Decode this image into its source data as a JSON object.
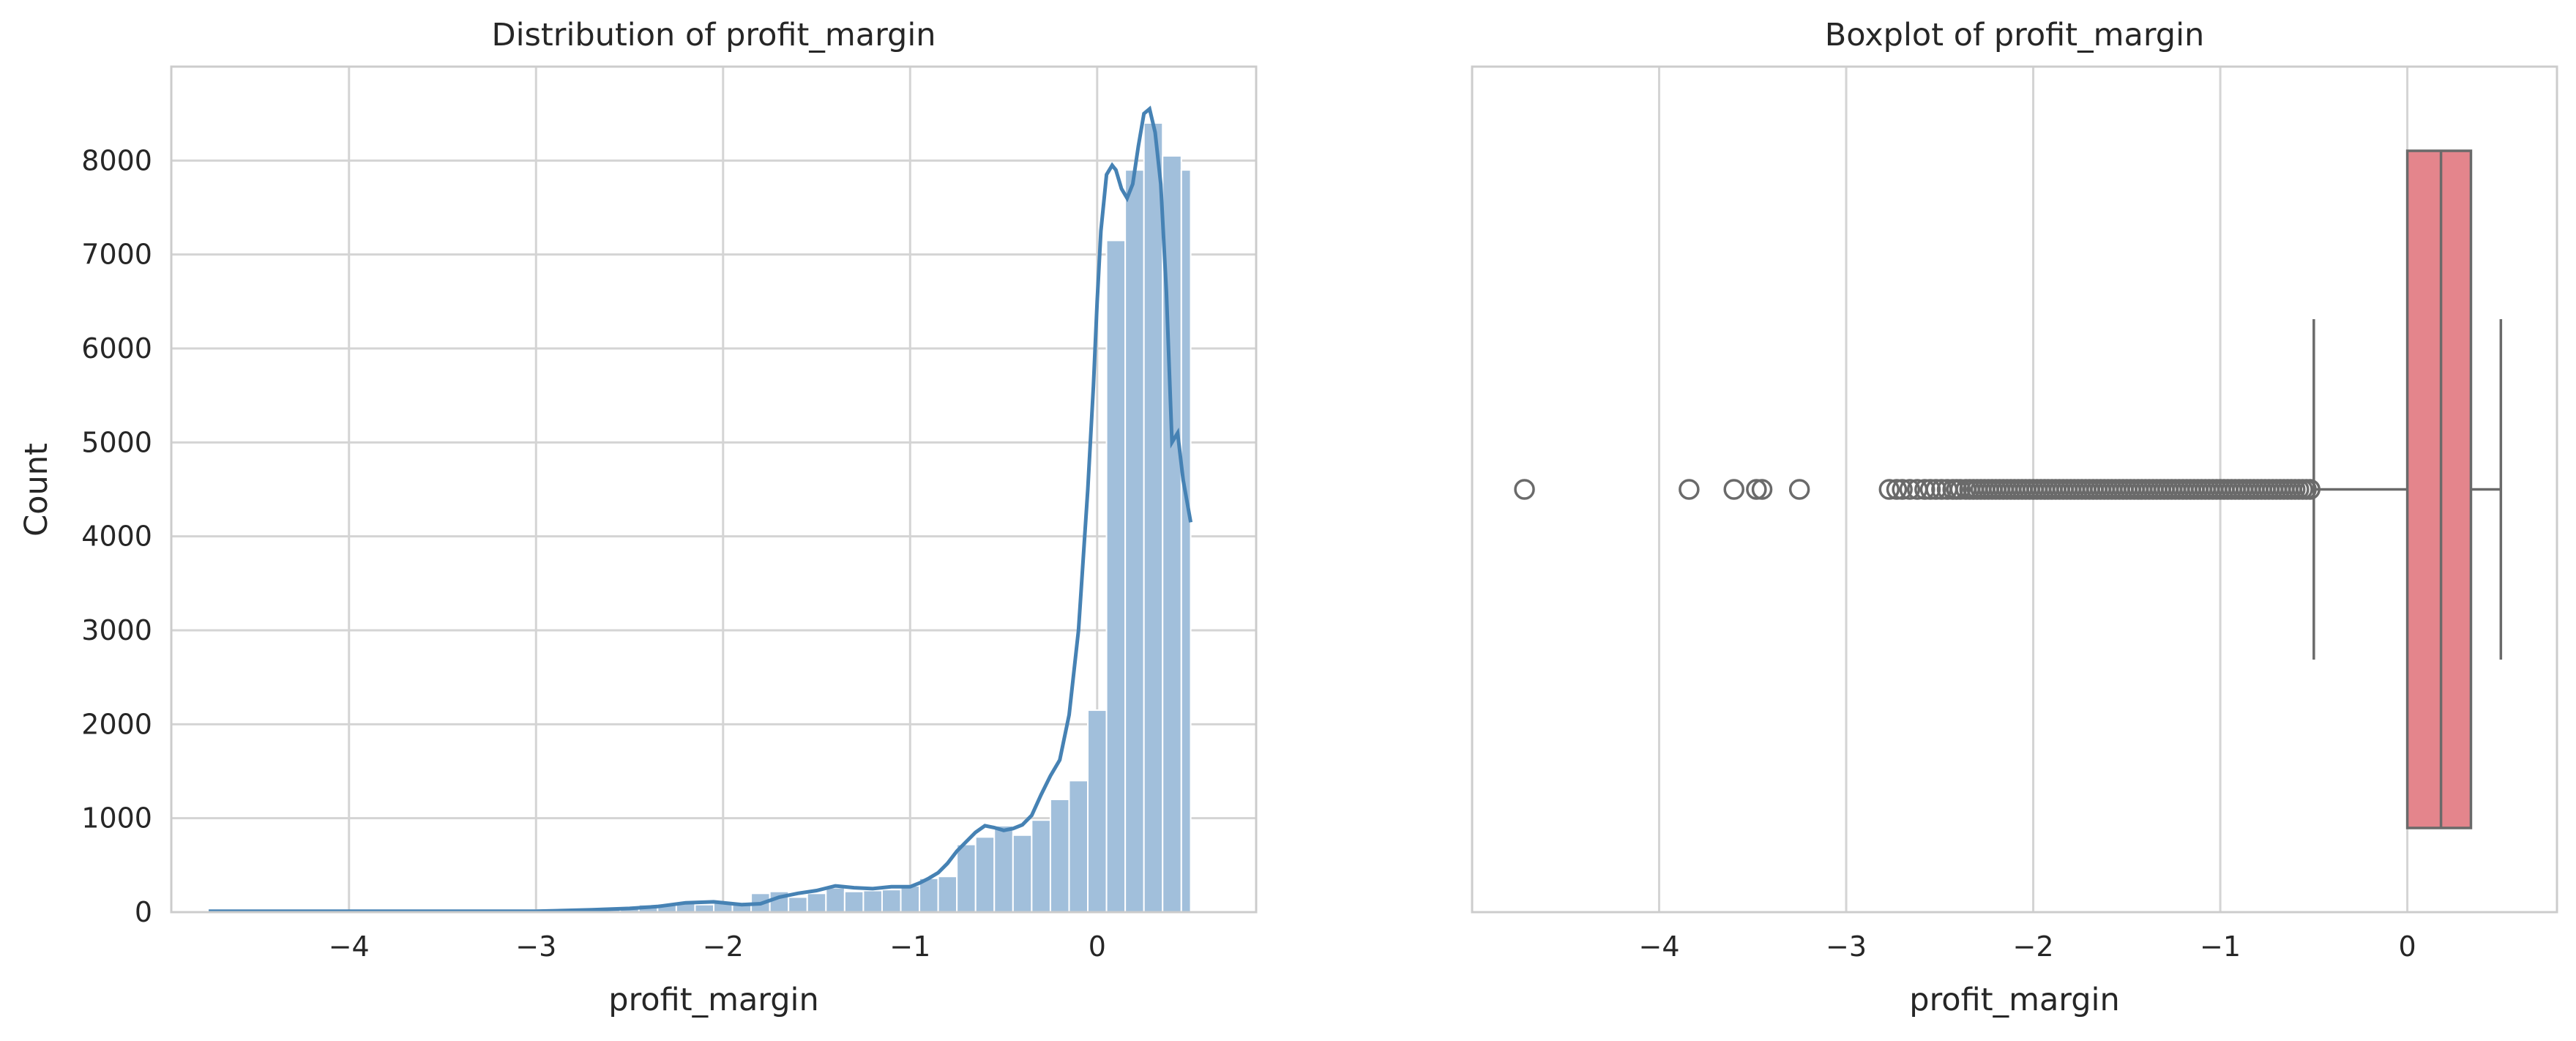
{
  "colors": {
    "hist_fill": "#a1bfdb",
    "hist_stroke": "#ffffff",
    "kde_line": "#4682b4",
    "box_fill": "#e4858c",
    "box_line": "#6a6a6a",
    "grid": "#d4d4d4",
    "frame": "#cccccc",
    "flier_edge": "#6a6a6a"
  },
  "chart_data": [
    {
      "type": "bar",
      "title": "Distribution of profit_margin",
      "xlabel": "profit_margin",
      "ylabel": "Count",
      "xlim": [
        -4.95,
        0.85
      ],
      "ylim": [
        0,
        9000
      ],
      "xticks": [
        -4,
        -3,
        -2,
        -1,
        0
      ],
      "xtick_labels": [
        "−4",
        "−3",
        "−2",
        "−1",
        "0"
      ],
      "yticks": [
        0,
        1000,
        2000,
        3000,
        4000,
        5000,
        6000,
        7000,
        8000
      ],
      "ytick_labels": [
        "0",
        "1000",
        "2000",
        "3000",
        "4000",
        "5000",
        "6000",
        "7000",
        "8000"
      ],
      "grid": true,
      "bin_edges": [
        -4.75,
        -4.65,
        -4.55,
        -4.45,
        -4.35,
        -4.25,
        -4.15,
        -4.05,
        -3.95,
        -3.85,
        -3.75,
        -3.65,
        -3.55,
        -3.45,
        -3.35,
        -3.25,
        -3.15,
        -3.05,
        -2.95,
        -2.85,
        -2.75,
        -2.65,
        -2.55,
        -2.45,
        -2.35,
        -2.25,
        -2.15,
        -2.05,
        -1.95,
        -1.85,
        -1.75,
        -1.65,
        -1.55,
        -1.45,
        -1.35,
        -1.25,
        -1.15,
        -1.05,
        -0.95,
        -0.85,
        -0.75,
        -0.65,
        -0.55,
        -0.45,
        -0.35,
        -0.25,
        -0.15,
        -0.05,
        0.05,
        0.15,
        0.25,
        0.35,
        0.45,
        0.5
      ],
      "counts": [
        10,
        3,
        5,
        4,
        6,
        4,
        6,
        8,
        6,
        12,
        8,
        10,
        14,
        10,
        14,
        16,
        20,
        22,
        28,
        30,
        40,
        55,
        62,
        80,
        90,
        110,
        80,
        100,
        90,
        200,
        220,
        160,
        200,
        260,
        220,
        230,
        240,
        280,
        360,
        380,
        720,
        800,
        920,
        820,
        980,
        1200,
        1400,
        2150,
        7150,
        7900,
        8400,
        8050,
        7900
      ],
      "series": [
        {
          "name": "kde",
          "type": "line",
          "x": [
            -4.75,
            -4.0,
            -3.0,
            -2.7,
            -2.5,
            -2.35,
            -2.2,
            -2.05,
            -1.9,
            -1.8,
            -1.7,
            -1.6,
            -1.5,
            -1.4,
            -1.3,
            -1.2,
            -1.1,
            -1.0,
            -0.95,
            -0.9,
            -0.85,
            -0.8,
            -0.75,
            -0.7,
            -0.65,
            -0.6,
            -0.55,
            -0.5,
            -0.45,
            -0.4,
            -0.35,
            -0.3,
            -0.25,
            -0.2,
            -0.15,
            -0.1,
            -0.05,
            -0.02,
            0.0,
            0.02,
            0.05,
            0.08,
            0.1,
            0.13,
            0.16,
            0.19,
            0.22,
            0.25,
            0.28,
            0.31,
            0.34,
            0.37,
            0.4,
            0.43,
            0.46,
            0.5
          ],
          "y": [
            10,
            10,
            10,
            25,
            40,
            60,
            100,
            110,
            80,
            90,
            160,
            200,
            230,
            280,
            260,
            250,
            270,
            270,
            310,
            360,
            420,
            520,
            650,
            750,
            850,
            920,
            900,
            870,
            890,
            930,
            1030,
            1250,
            1450,
            1620,
            2100,
            3000,
            4500,
            5600,
            6500,
            7250,
            7850,
            7950,
            7900,
            7700,
            7600,
            7750,
            8150,
            8500,
            8550,
            8300,
            7750,
            6600,
            5000,
            5100,
            4600,
            4150
          ]
        }
      ]
    },
    {
      "type": "box",
      "title": "Boxplot of profit_margin",
      "xlabel": "profit_margin",
      "xlim": [
        -5.0,
        0.8
      ],
      "xticks": [
        -4,
        -3,
        -2,
        -1,
        0
      ],
      "xtick_labels": [
        "−4",
        "−3",
        "−2",
        "−1",
        "0"
      ],
      "grid": true,
      "whisker_low": -0.5,
      "q1": 0.0,
      "median": 0.18,
      "q3": 0.34,
      "whisker_high": 0.5,
      "outliers": [
        -4.72,
        -3.84,
        -3.6,
        -3.48,
        -3.45,
        -3.25,
        -2.77,
        -2.73,
        -2.7,
        -2.66,
        -2.62,
        -2.58,
        -2.55,
        -2.52,
        -2.49,
        -2.46,
        -2.43,
        -2.41,
        -2.39,
        -2.36,
        -2.34,
        -2.32,
        -2.3,
        -2.28,
        -2.26,
        -2.24,
        -2.22,
        -2.2,
        -2.18,
        -2.16,
        -2.14,
        -2.12,
        -2.1,
        -2.08,
        -2.06,
        -2.04,
        -2.02,
        -2.0,
        -1.98,
        -1.96,
        -1.94,
        -1.92,
        -1.9,
        -1.88,
        -1.86,
        -1.84,
        -1.82,
        -1.8,
        -1.78,
        -1.76,
        -1.74,
        -1.72,
        -1.7,
        -1.68,
        -1.66,
        -1.64,
        -1.62,
        -1.6,
        -1.58,
        -1.56,
        -1.54,
        -1.52,
        -1.5,
        -1.48,
        -1.46,
        -1.44,
        -1.42,
        -1.4,
        -1.38,
        -1.36,
        -1.34,
        -1.32,
        -1.3,
        -1.28,
        -1.26,
        -1.24,
        -1.22,
        -1.2,
        -1.18,
        -1.16,
        -1.14,
        -1.12,
        -1.1,
        -1.08,
        -1.06,
        -1.04,
        -1.02,
        -1.0,
        -0.98,
        -0.96,
        -0.94,
        -0.92,
        -0.9,
        -0.88,
        -0.86,
        -0.84,
        -0.82,
        -0.8,
        -0.78,
        -0.76,
        -0.74,
        -0.72,
        -0.7,
        -0.68,
        -0.66,
        -0.64,
        -0.62,
        -0.6,
        -0.58,
        -0.56,
        -0.54,
        -0.52
      ]
    }
  ]
}
